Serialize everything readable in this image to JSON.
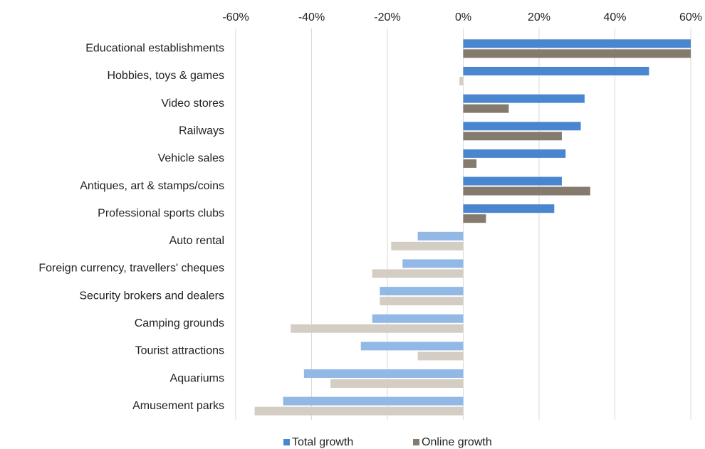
{
  "chart_data": {
    "type": "hbar",
    "categories": [
      "Educational establishments",
      "Hobbies, toys & games",
      "Video stores",
      "Railways",
      "Vehicle sales",
      "Antiques, art & stamps/coins",
      "Professional sports clubs",
      "Auto rental",
      "Foreign currency, travellers' cheques",
      "Security brokers and dealers",
      "Camping grounds",
      "Tourist attractions",
      "Aquariums",
      "Amusement parks"
    ],
    "series": [
      {
        "name": "Total growth",
        "color": "#4a86d0",
        "negative_color": "#92b8e6",
        "values": [
          60,
          49,
          32,
          31,
          27,
          26,
          24,
          -12,
          -16,
          -22,
          -24,
          -27,
          -42,
          -47.5
        ]
      },
      {
        "name": "Online growth",
        "color": "#857a6e",
        "negative_color": "#d4cdc3",
        "values": [
          60,
          -1,
          12,
          26,
          3.5,
          33.5,
          6,
          -19,
          -24,
          -22,
          -45.5,
          -12,
          -35,
          -55
        ]
      }
    ],
    "xlim": [
      -60,
      60
    ],
    "xticks": [
      {
        "value": -60,
        "label": "-60%"
      },
      {
        "value": -40,
        "label": "-40%"
      },
      {
        "value": -20,
        "label": "-20%"
      },
      {
        "value": 0,
        "label": "0%"
      },
      {
        "value": 20,
        "label": "20%"
      },
      {
        "value": 40,
        "label": "40%"
      },
      {
        "value": 60,
        "label": "60%"
      }
    ],
    "grid": true,
    "legend": "bottom"
  }
}
